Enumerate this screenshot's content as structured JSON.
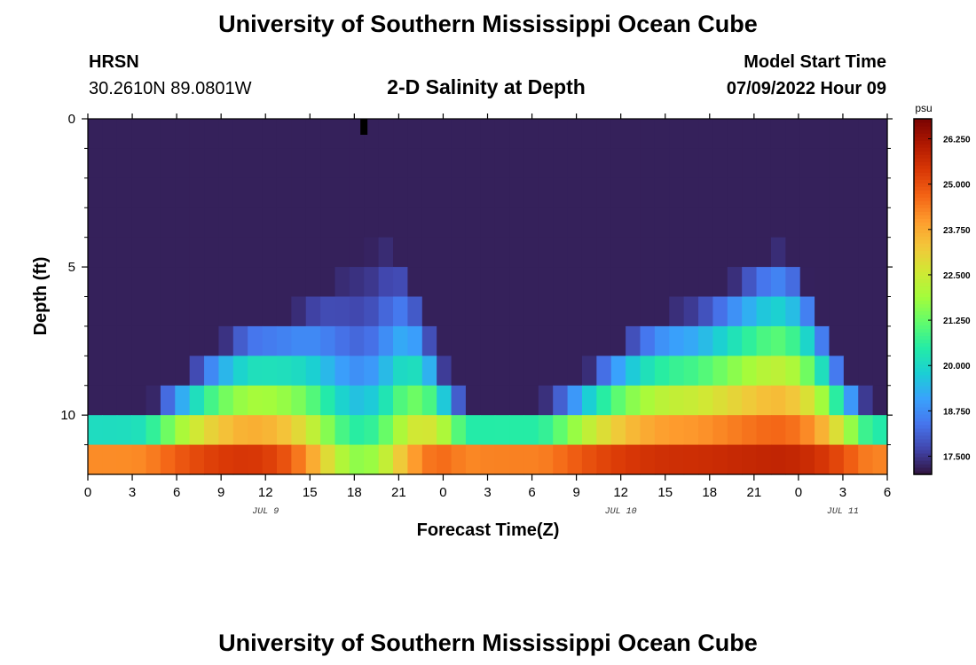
{
  "header": {
    "title": "University of Southern Mississippi Ocean Cube",
    "station": "HRSN",
    "coords": "30.2610N  89.0801W",
    "subtitle": "2-D Salinity at Depth",
    "start_label": "Model Start Time",
    "start_value": "07/09/2022 Hour 09",
    "footer_title": "University of Southern Mississippi Ocean Cube"
  },
  "chart_data": {
    "type": "heatmap",
    "title": "2-D Salinity at Depth",
    "xlabel": "Forecast Time(Z)",
    "ylabel": "Depth (ft)",
    "x_hours_range": [
      0,
      54
    ],
    "x_tick_hours": [
      0,
      3,
      6,
      9,
      12,
      15,
      18,
      21,
      24,
      27,
      30,
      33,
      36,
      39,
      42,
      45,
      48,
      51,
      54
    ],
    "x_tick_labels": [
      "0",
      "3",
      "6",
      "9",
      "12",
      "15",
      "18",
      "21",
      "0",
      "3",
      "6",
      "9",
      "12",
      "15",
      "18",
      "21",
      "0",
      "3",
      "6"
    ],
    "date_labels": [
      {
        "text": "JUL 9",
        "hour": 12
      },
      {
        "text": "JUL 10",
        "hour": 36
      },
      {
        "text": "JUL 11",
        "hour": 51
      }
    ],
    "ylim": [
      0,
      12
    ],
    "y_major_ticks": [
      0,
      5,
      10
    ],
    "y_minor_ticks": [
      1,
      2,
      3,
      4,
      6,
      7,
      8,
      9,
      11
    ],
    "colorbar": {
      "unit": "psu",
      "min": 17.0,
      "max": 26.8,
      "tick_values": [
        17.5,
        18.75,
        20.0,
        21.25,
        22.5,
        23.75,
        25.0,
        26.25
      ],
      "tick_labels": [
        "17.500",
        "18.750",
        "20.000",
        "21.250",
        "22.500",
        "23.750",
        "25.000",
        "26.250"
      ],
      "colors": [
        "#30123b",
        "#4145ab",
        "#4675ed",
        "#39a2fc",
        "#1bcfd4",
        "#24eca6",
        "#61fc6c",
        "#a4fc3b",
        "#d1e834",
        "#f3c63a",
        "#fe9b2d",
        "#f36315",
        "#d93806",
        "#b11901",
        "#7a0402"
      ]
    },
    "layers": 12,
    "time_steps": 55,
    "model": "salinity(hour, depth) psu",
    "params": {
      "deep_minima_hours": [
        20.5,
        47.5
      ],
      "cold_tongue_center_hour": 18.5,
      "cold_tongue_surface_salinity": 17.3,
      "bottom_max_salinity": 26.4,
      "surface_min_salinity": 17.8,
      "secondary_peak_hour": 42,
      "secondary_peak_salinity": 22.1
    }
  }
}
